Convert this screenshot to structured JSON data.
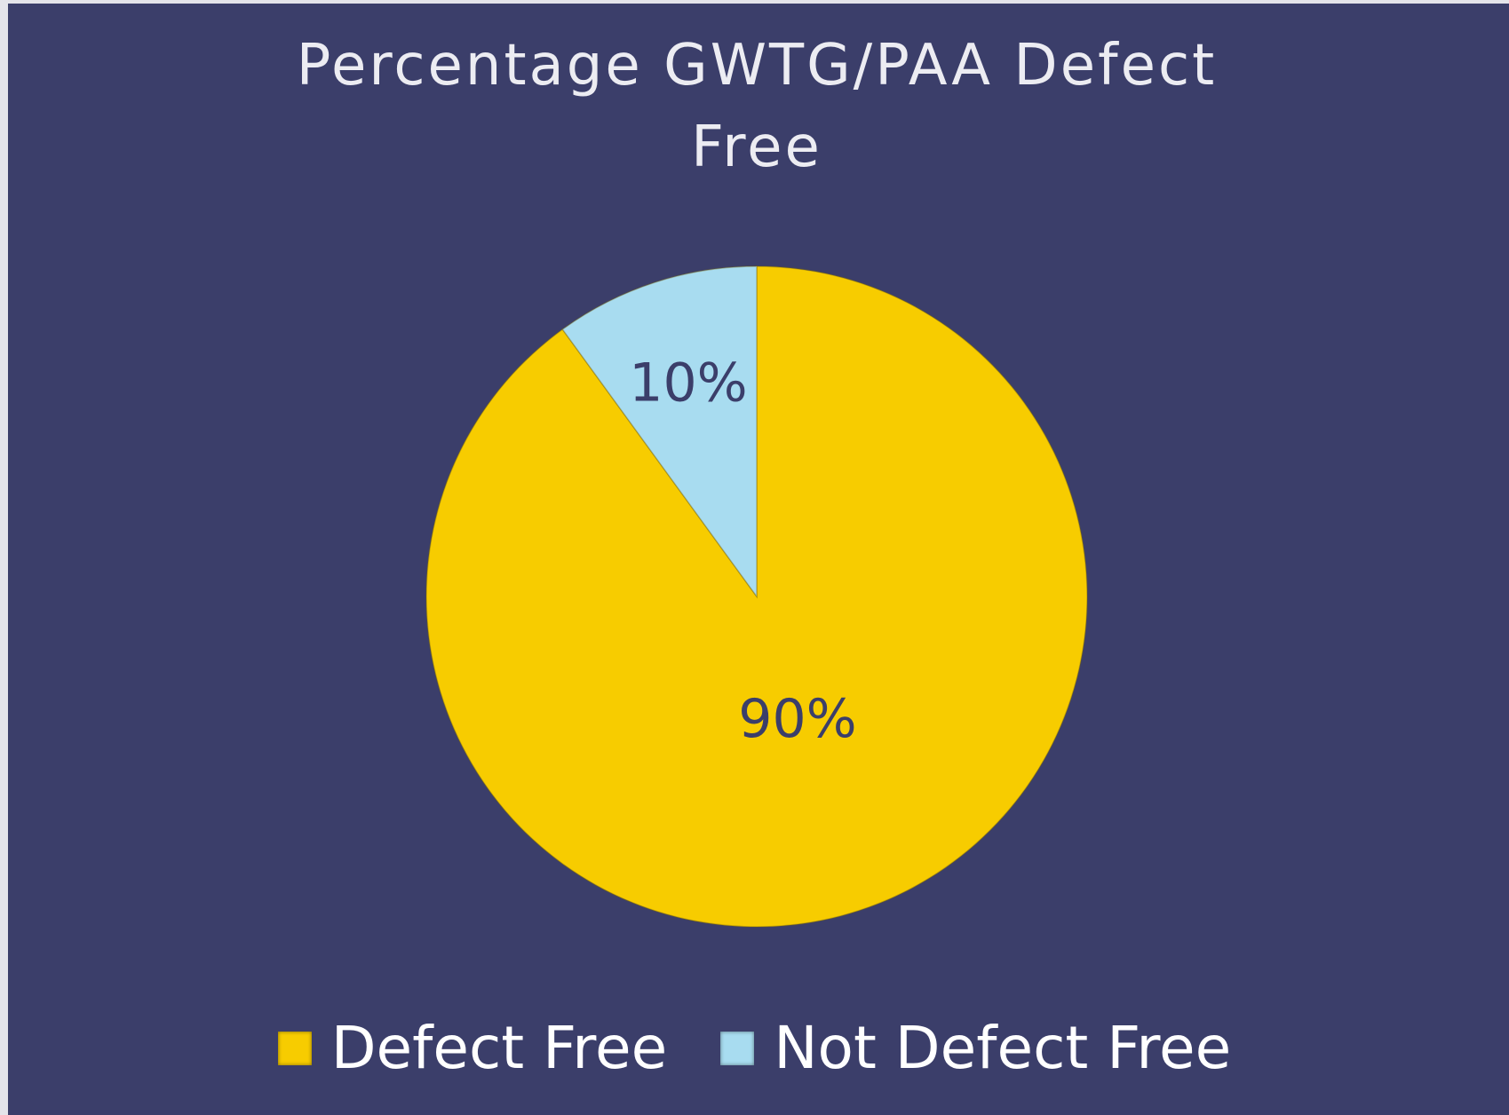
{
  "chart_data": {
    "type": "pie",
    "title": "Percentage GWTG/PAA Defect Free",
    "categories": [
      "Defect Free",
      "Not Defect Free"
    ],
    "values": [
      90,
      10
    ],
    "value_labels": [
      "90%",
      "10%"
    ],
    "colors": [
      "#f7cc00",
      "#a8dcf0"
    ],
    "legend": "bottom"
  }
}
